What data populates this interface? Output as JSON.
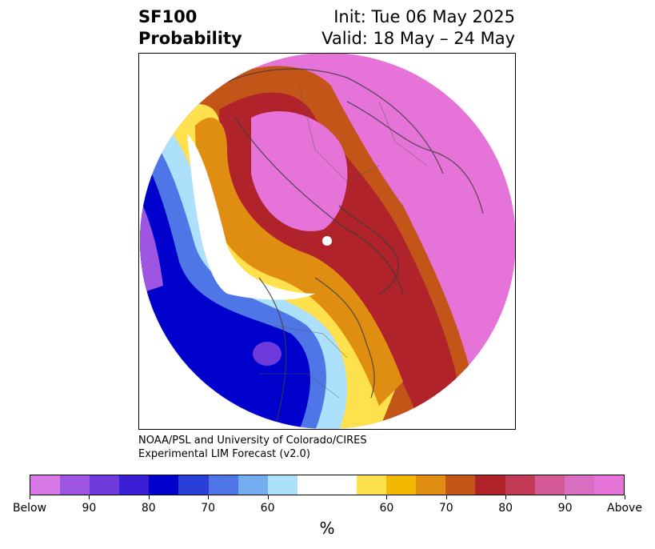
{
  "title": {
    "line1": "SF100",
    "line2": "Probability",
    "init": "Init: Tue 06 May 2025",
    "valid": "Valid: 18 May – 24 May"
  },
  "credit": {
    "line1": "NOAA/PSL and University of Colorado/CIRES",
    "line2": "Experimental LIM Forecast (v2.0)"
  },
  "colorbar": {
    "colors": [
      "#d77ae8",
      "#9e56e2",
      "#6e3adb",
      "#3a1ed6",
      "#0000cc",
      "#2a3ed8",
      "#4f76e6",
      "#74aef0",
      "#ade0fb",
      "#ffffff",
      "#ffffff",
      "#ffe14d",
      "#f4b800",
      "#e08e12",
      "#c45518",
      "#b0232a",
      "#c23a55",
      "#d35a94",
      "#d96ec0",
      "#e673d8"
    ],
    "ticks": [
      {
        "label": "Below",
        "index": 0
      },
      {
        "label": "90",
        "index": 2
      },
      {
        "label": "80",
        "index": 4
      },
      {
        "label": "70",
        "index": 6
      },
      {
        "label": "60",
        "index": 8
      },
      {
        "label": "60",
        "index": 12
      },
      {
        "label": "70",
        "index": 14
      },
      {
        "label": "80",
        "index": 16
      },
      {
        "label": "90",
        "index": 18
      },
      {
        "label": "Above",
        "index": 20
      }
    ],
    "unit": "%"
  }
}
